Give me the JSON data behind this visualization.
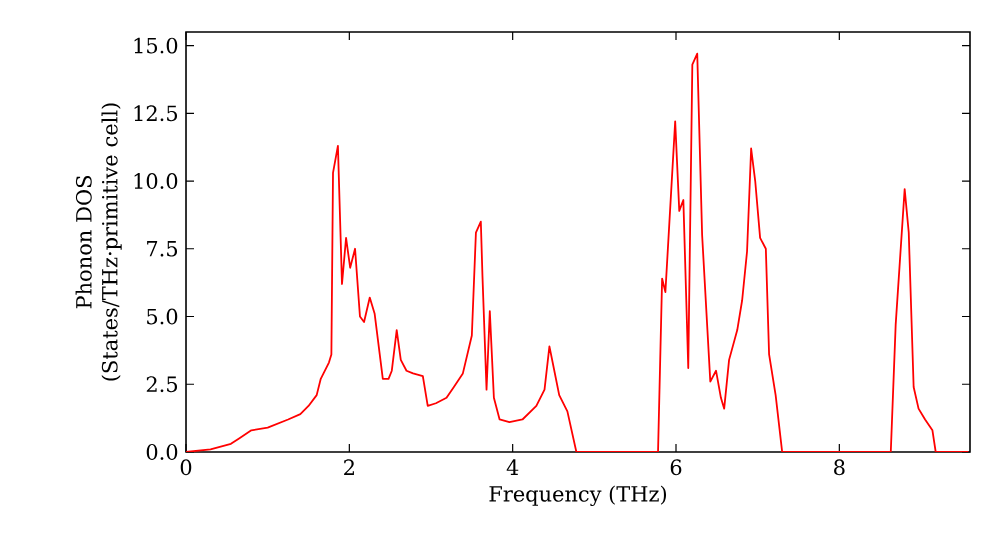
{
  "chart_data": {
    "type": "line",
    "xlabel": "Frequency (THz)",
    "ylabel": "Phonon DOS (States/THz·primitive cell)",
    "xlim": [
      0,
      9.6
    ],
    "ylim": [
      0,
      15.5
    ],
    "xticks": [
      0,
      2,
      4,
      6,
      8
    ],
    "yticks": [
      {
        "value": 0,
        "label": "0.0"
      },
      {
        "value": 2.5,
        "label": "2.5"
      },
      {
        "value": 5,
        "label": "5.0"
      },
      {
        "value": 7.5,
        "label": "7.5"
      },
      {
        "value": 10,
        "label": "10.0"
      },
      {
        "value": 12.5,
        "label": "12.5"
      },
      {
        "value": 15,
        "label": "15.0"
      }
    ],
    "marker": "none",
    "line_style": "solid",
    "series": [
      {
        "color": "#ff0000",
        "x": [
          0,
          0.3,
          0.55,
          0.65,
          0.8,
          1.0,
          1.25,
          1.4,
          1.5,
          1.6,
          1.65,
          1.75,
          1.78,
          1.8,
          1.86,
          1.91,
          1.96,
          2.01,
          2.07,
          2.13,
          2.18,
          2.25,
          2.31,
          2.41,
          2.48,
          2.52,
          2.58,
          2.63,
          2.7,
          2.78,
          2.9,
          2.96,
          3.06,
          3.19,
          3.28,
          3.39,
          3.5,
          3.55,
          3.61,
          3.63,
          3.68,
          3.72,
          3.77,
          3.84,
          3.96,
          4.12,
          4.29,
          4.39,
          4.45,
          4.51,
          4.57,
          4.67,
          4.78,
          5.78,
          5.83,
          5.87,
          5.99,
          6.04,
          6.09,
          6.15,
          6.2,
          6.26,
          6.32,
          6.42,
          6.49,
          6.55,
          6.59,
          6.65,
          6.75,
          6.81,
          6.87,
          6.92,
          6.97,
          7.03,
          7.1,
          7.14,
          7.22,
          7.3,
          8.63,
          8.69,
          8.8,
          8.85,
          8.91,
          8.97,
          9.05,
          9.14,
          9.18,
          9.58
        ],
        "values": [
          0,
          0.1,
          0.3,
          0.5,
          0.8,
          0.9,
          1.2,
          1.4,
          1.7,
          2.1,
          2.7,
          3.3,
          3.6,
          10.3,
          11.3,
          6.2,
          7.9,
          6.8,
          7.5,
          5.0,
          4.8,
          5.7,
          5.1,
          2.7,
          2.7,
          3.0,
          4.5,
          3.4,
          3.0,
          2.9,
          2.8,
          1.7,
          1.8,
          2.0,
          2.4,
          2.9,
          4.3,
          8.1,
          8.5,
          6.5,
          2.3,
          5.2,
          2.0,
          1.2,
          1.1,
          1.2,
          1.7,
          2.3,
          3.9,
          3.0,
          2.1,
          1.5,
          0,
          0,
          6.4,
          5.9,
          12.2,
          8.9,
          9.3,
          3.1,
          14.3,
          14.7,
          8.0,
          2.6,
          3.0,
          2.0,
          1.6,
          3.4,
          4.5,
          5.6,
          7.4,
          11.2,
          10.0,
          7.9,
          7.5,
          3.6,
          2.1,
          0,
          0,
          4.7,
          9.7,
          8.1,
          2.4,
          1.6,
          1.2,
          0.8,
          0,
          0
        ]
      }
    ]
  }
}
